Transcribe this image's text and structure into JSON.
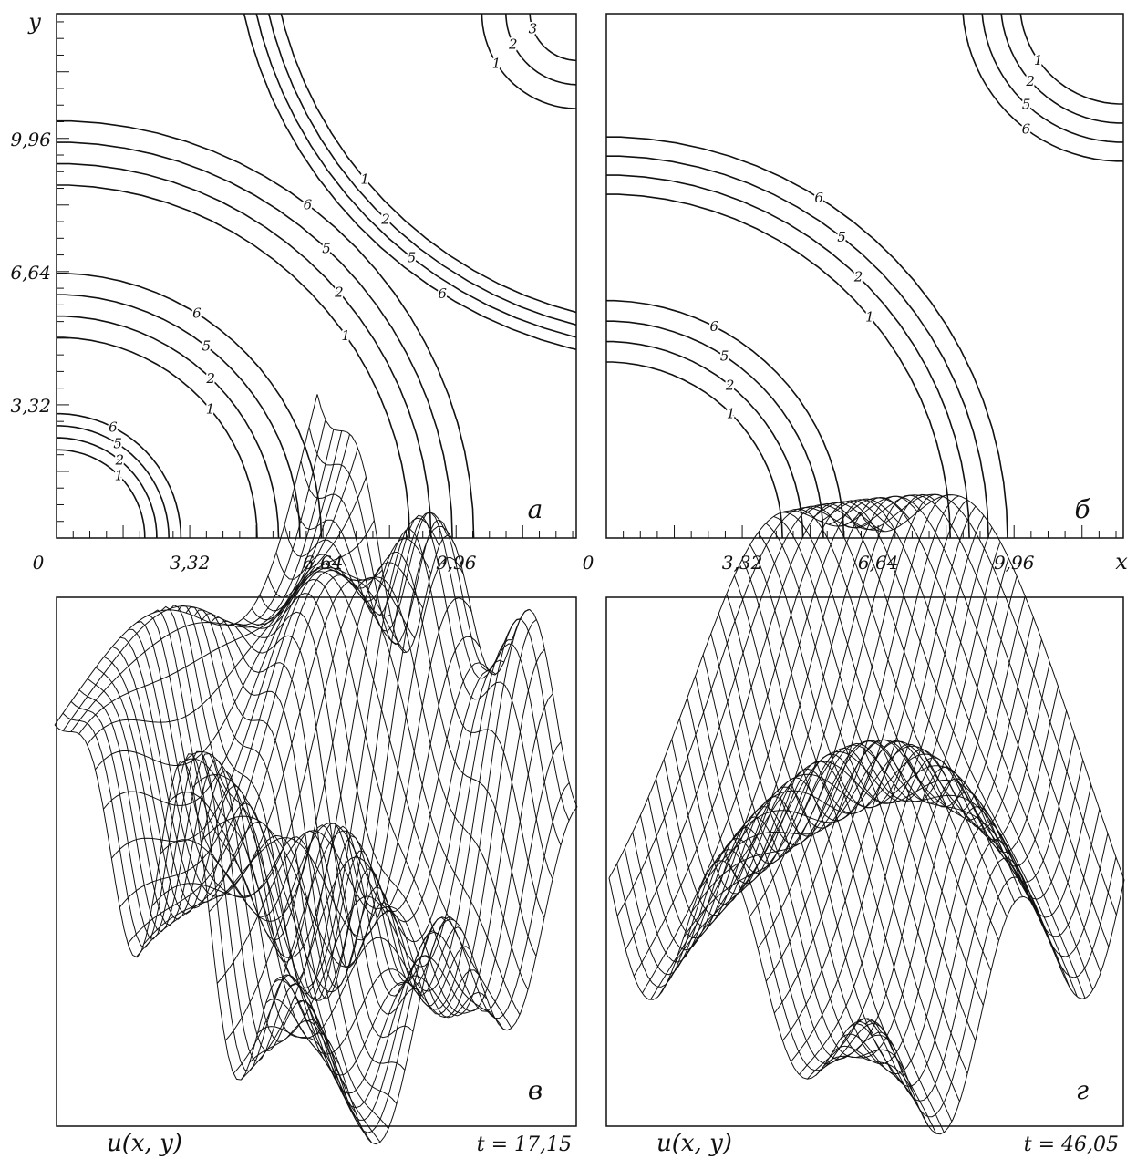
{
  "panels": [
    {
      "letter": "а",
      "y_label": "y",
      "x_ticks": [
        "0",
        "3,32",
        "6,64",
        "9,96"
      ],
      "y_ticks": [
        "3,32",
        "6,64",
        "9,96"
      ],
      "contour_groups": [
        {
          "labels": [
            "1",
            "2",
            "5",
            "6"
          ]
        },
        {
          "labels": [
            "1",
            "2",
            "5",
            "6"
          ]
        },
        {
          "labels": [
            "1",
            "2",
            "5",
            "6"
          ]
        },
        {
          "labels": [
            "1",
            "2",
            "5",
            "6"
          ]
        },
        {
          "labels": [
            "3",
            "2",
            "1"
          ]
        }
      ]
    },
    {
      "letter": "б",
      "x_label": "x",
      "x_ticks": [
        "0",
        "3,32",
        "6,64",
        "9,96"
      ],
      "contour_groups": [
        {
          "labels": [
            "1",
            "2",
            "5",
            "6"
          ]
        },
        {
          "labels": [
            "1",
            "2",
            "5",
            "6"
          ]
        },
        {
          "labels": [
            "1",
            "2",
            "5",
            "6"
          ]
        }
      ]
    },
    {
      "letter": "в",
      "z_label": "u(x, y)",
      "time": "t = 17,15"
    },
    {
      "letter": "г",
      "z_label": "u(x, y)",
      "time": "t = 46,05"
    }
  ]
}
